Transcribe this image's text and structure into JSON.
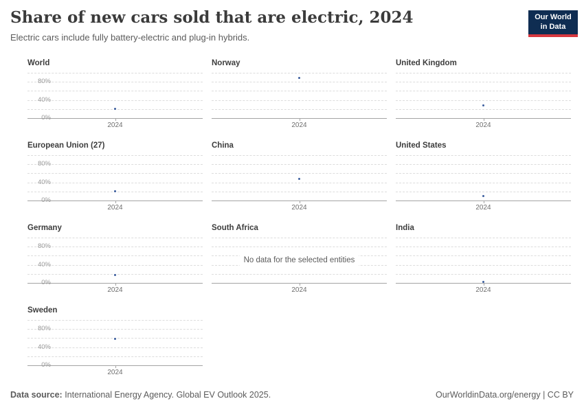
{
  "header": {
    "title": "Share of new cars sold that are electric, 2024",
    "subtitle": "Electric cars include fully battery-electric and plug-in hybrids."
  },
  "logo": {
    "line1": "Our World",
    "line2": "in Data",
    "bg_color": "#0f2d52",
    "accent_color": "#d7383f"
  },
  "chart_data": {
    "type": "scatter",
    "title": "Share of new cars sold that are electric, 2024",
    "x_tick": "2024",
    "y_ticks": [
      {
        "label": "80%",
        "value": 80
      },
      {
        "label": "40%",
        "value": 40
      },
      {
        "label": "0%",
        "value": 0
      }
    ],
    "ylim": [
      0,
      100
    ],
    "gridlines": [
      100,
      80,
      60,
      40,
      20
    ],
    "grid": "dashed",
    "dot_color": "#3d5f9f",
    "no_data_message": "No data for the selected entities",
    "facets": [
      {
        "title": "World",
        "x": 2024,
        "value": 20
      },
      {
        "title": "Norway",
        "x": 2024,
        "value": 89
      },
      {
        "title": "United Kingdom",
        "x": 2024,
        "value": 28
      },
      {
        "title": "European Union (27)",
        "x": 2024,
        "value": 21
      },
      {
        "title": "China",
        "x": 2024,
        "value": 47
      },
      {
        "title": "United States",
        "x": 2024,
        "value": 10
      },
      {
        "title": "Germany",
        "x": 2024,
        "value": 18
      },
      {
        "title": "South Africa",
        "x": 2024,
        "value": null,
        "no_data": true
      },
      {
        "title": "India",
        "x": 2024,
        "value": 2.5
      },
      {
        "title": "Sweden",
        "x": 2024,
        "value": 58
      }
    ]
  },
  "footer": {
    "source_label": "Data source:",
    "source_text": " International Energy Agency. Global EV Outlook 2025.",
    "right_text": "OurWorldinData.org/energy | CC BY"
  }
}
